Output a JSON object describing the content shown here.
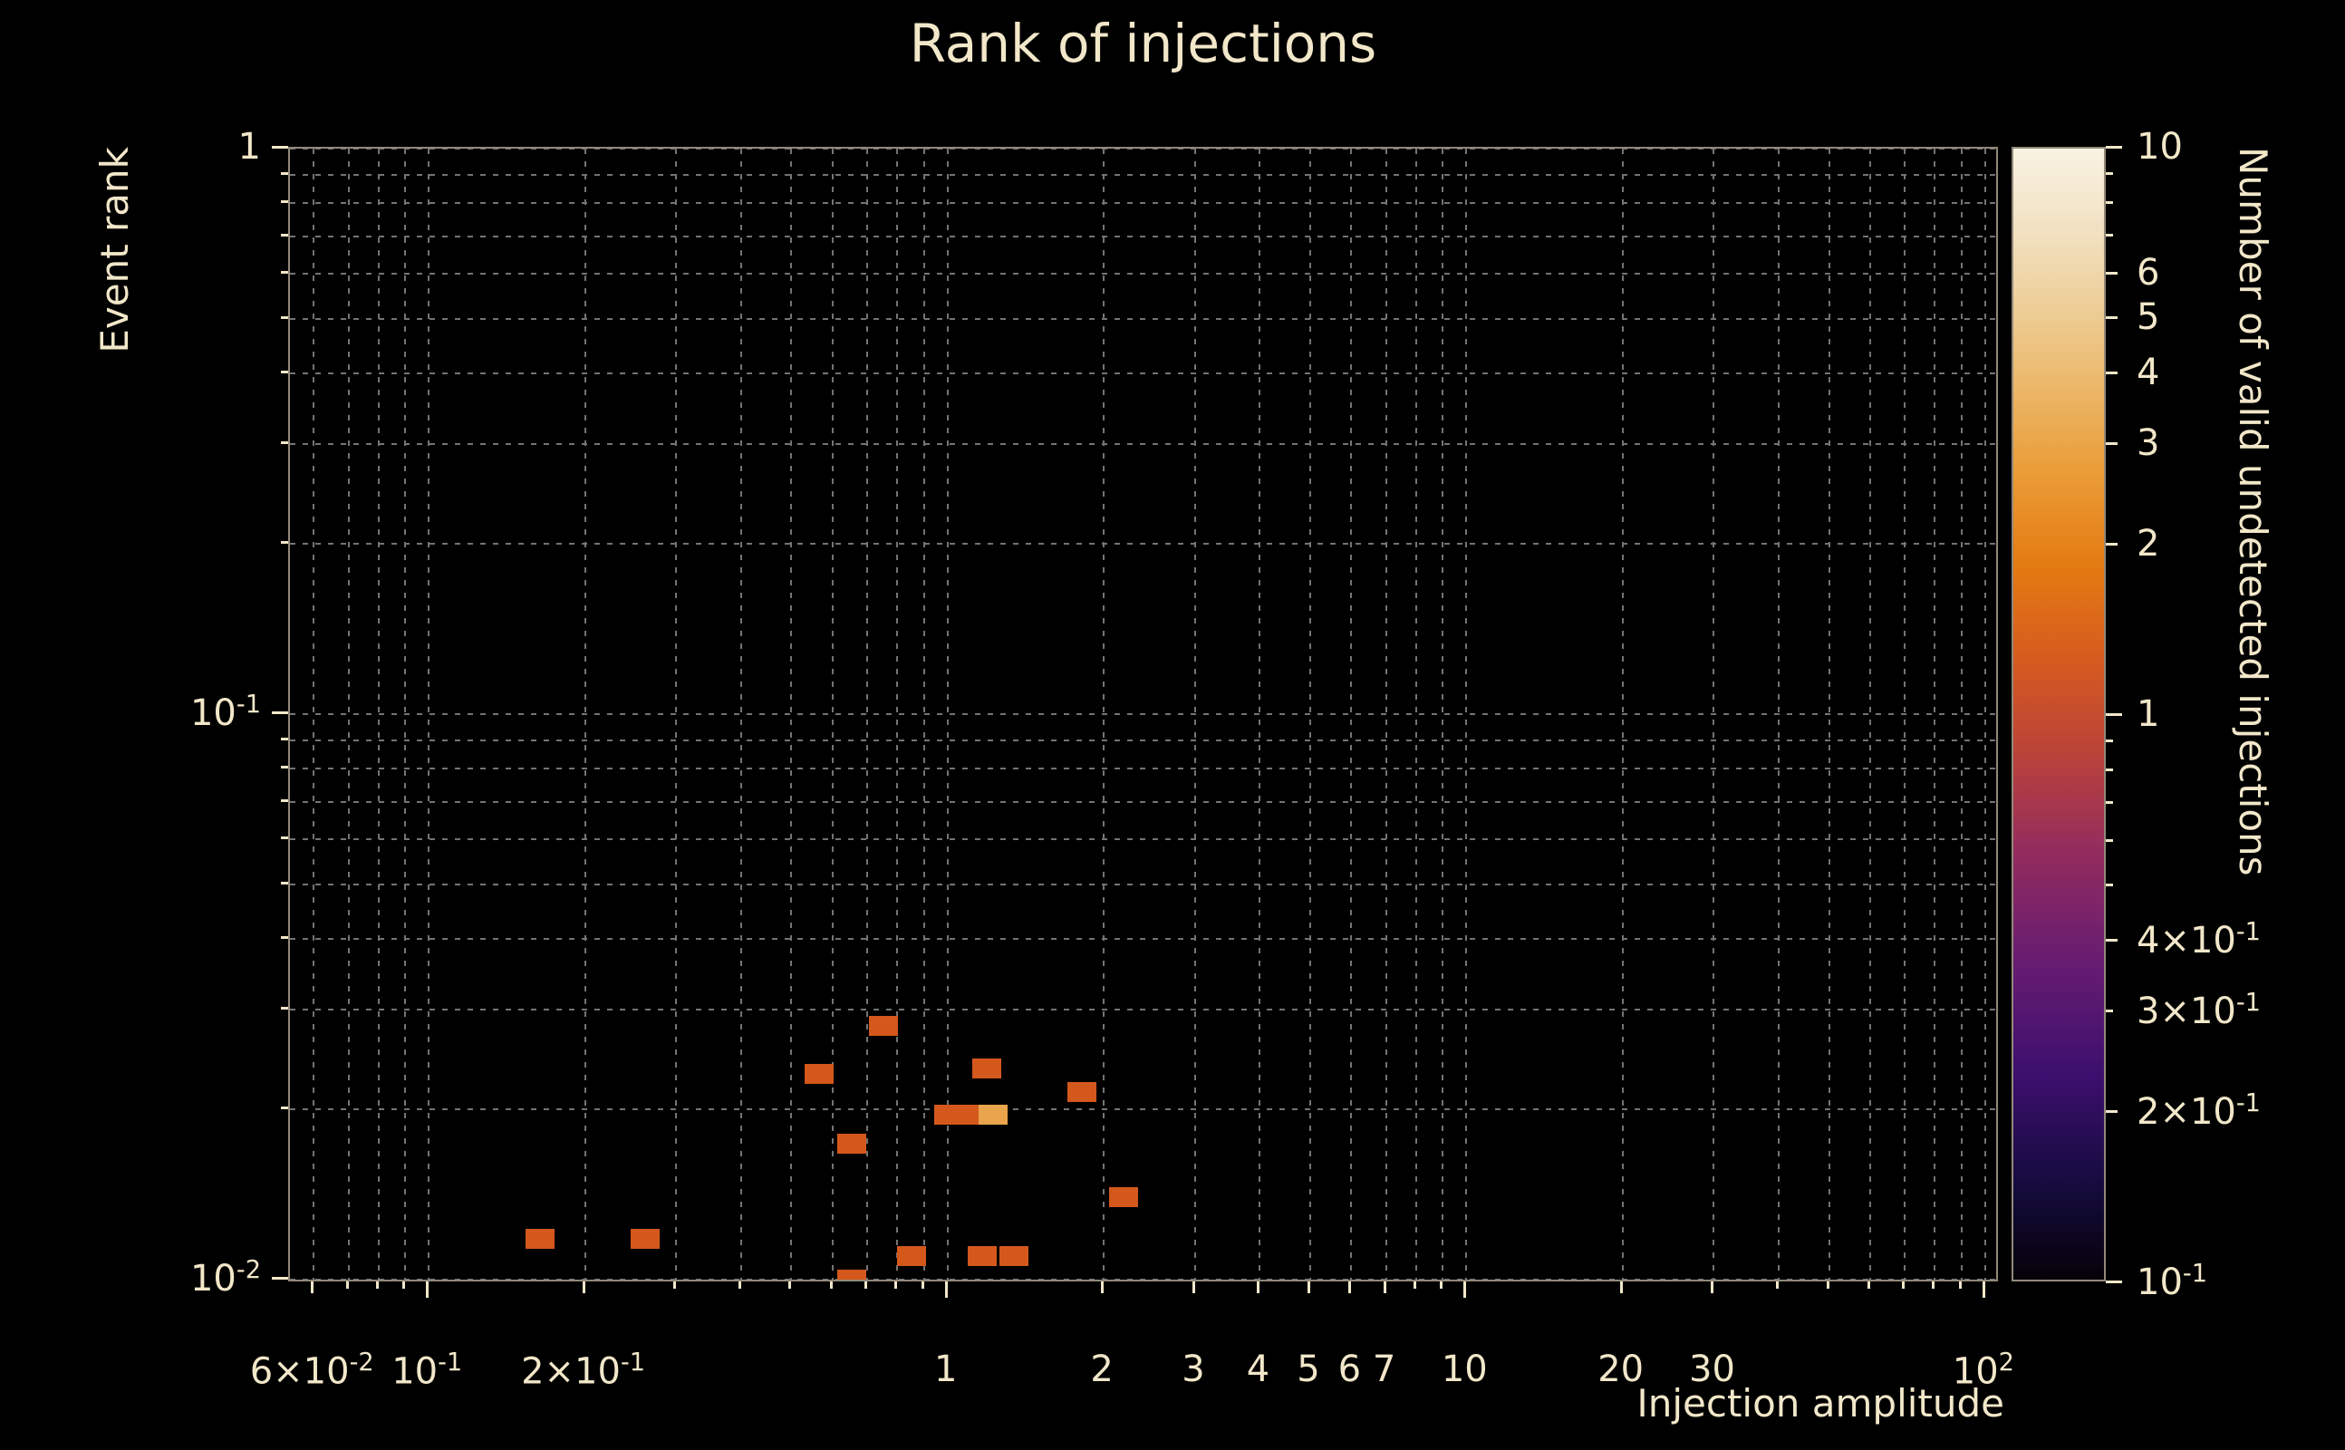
{
  "chart_data": {
    "type": "heatmap",
    "title": "Rank of injections",
    "xlabel": "Injection amplitude",
    "ylabel": "Event rank",
    "colorbar_label": "Number of valid undetected injections",
    "xscale": "log",
    "yscale": "log",
    "xlim": [
      0.054,
      105
    ],
    "ylim": [
      0.01,
      1
    ],
    "grid": "dashed-major-and-minor",
    "background": "#000000",
    "text_color": "#f2e7c9",
    "grid_color": "#747474",
    "frame_color": "#92897a",
    "x_ticks": [
      {
        "v": 0.06,
        "label": "6×10^-2"
      },
      {
        "v": 0.1,
        "label": "10^-1"
      },
      {
        "v": 0.2,
        "label": "2×10^-1"
      },
      {
        "v": 1,
        "label": "1"
      },
      {
        "v": 2,
        "label": "2"
      },
      {
        "v": 3,
        "label": "3"
      },
      {
        "v": 4,
        "label": "4"
      },
      {
        "v": 5,
        "label": "5"
      },
      {
        "v": 6,
        "label": "6"
      },
      {
        "v": 7,
        "label": "7"
      },
      {
        "v": 10,
        "label": "10"
      },
      {
        "v": 20,
        "label": "20"
      },
      {
        "v": 30,
        "label": "30"
      },
      {
        "v": 100,
        "label": "10^2"
      }
    ],
    "y_ticks": [
      {
        "v": 1,
        "label": "1"
      },
      {
        "v": 0.1,
        "label": "10^-1"
      },
      {
        "v": 0.01,
        "label": "10^-2"
      }
    ],
    "colorbar": {
      "scale": "log",
      "min": 0.1,
      "max": 10,
      "ticks": [
        {
          "v": 10,
          "label": "10"
        },
        {
          "v": 6,
          "label": "6"
        },
        {
          "v": 5,
          "label": "5"
        },
        {
          "v": 4,
          "label": "4"
        },
        {
          "v": 3,
          "label": "3"
        },
        {
          "v": 2,
          "label": "2"
        },
        {
          "v": 1,
          "label": "1"
        },
        {
          "v": 0.4,
          "label": "4×10^-1"
        },
        {
          "v": 0.3,
          "label": "3×10^-1"
        },
        {
          "v": 0.2,
          "label": "2×10^-1"
        },
        {
          "v": 0.1,
          "label": "10^-1"
        }
      ],
      "gradient": [
        {
          "pos": 0.0,
          "color": "#050208"
        },
        {
          "pos": 0.08,
          "color": "#140b3c"
        },
        {
          "pos": 0.18,
          "color": "#3c0f6e"
        },
        {
          "pos": 0.28,
          "color": "#661c71"
        },
        {
          "pos": 0.38,
          "color": "#942c5e"
        },
        {
          "pos": 0.47,
          "color": "#bc4437"
        },
        {
          "pos": 0.55,
          "color": "#d65b1e"
        },
        {
          "pos": 0.63,
          "color": "#e47a12"
        },
        {
          "pos": 0.71,
          "color": "#ea9b35"
        },
        {
          "pos": 0.8,
          "color": "#ecbb70"
        },
        {
          "pos": 0.88,
          "color": "#eed4a5"
        },
        {
          "pos": 0.94,
          "color": "#f3e4c8"
        },
        {
          "pos": 1.0,
          "color": "#f9f2e2"
        }
      ]
    },
    "value_colors": {
      "1": "#d4581c",
      "3": "#e9a44c"
    },
    "cell_size_px": [
      32,
      22
    ],
    "cells": [
      {
        "x": 0.164,
        "y": 0.0118,
        "n": 1
      },
      {
        "x": 0.261,
        "y": 0.0118,
        "n": 1
      },
      {
        "x": 0.565,
        "y": 0.0231,
        "n": 1
      },
      {
        "x": 0.751,
        "y": 0.0281,
        "n": 1
      },
      {
        "x": 0.653,
        "y": 0.0174,
        "n": 1
      },
      {
        "x": 0.653,
        "y": 0.01,
        "n": 1
      },
      {
        "x": 0.851,
        "y": 0.011,
        "n": 1
      },
      {
        "x": 1.19,
        "y": 0.0236,
        "n": 1
      },
      {
        "x": 1.003,
        "y": 0.0196,
        "n": 1
      },
      {
        "x": 1.108,
        "y": 0.0196,
        "n": 1
      },
      {
        "x": 1.226,
        "y": 0.0196,
        "n": 3
      },
      {
        "x": 1.168,
        "y": 0.011,
        "n": 1
      },
      {
        "x": 1.344,
        "y": 0.011,
        "n": 1
      },
      {
        "x": 1.817,
        "y": 0.0215,
        "n": 1
      },
      {
        "x": 2.185,
        "y": 0.014,
        "n": 1
      }
    ]
  }
}
